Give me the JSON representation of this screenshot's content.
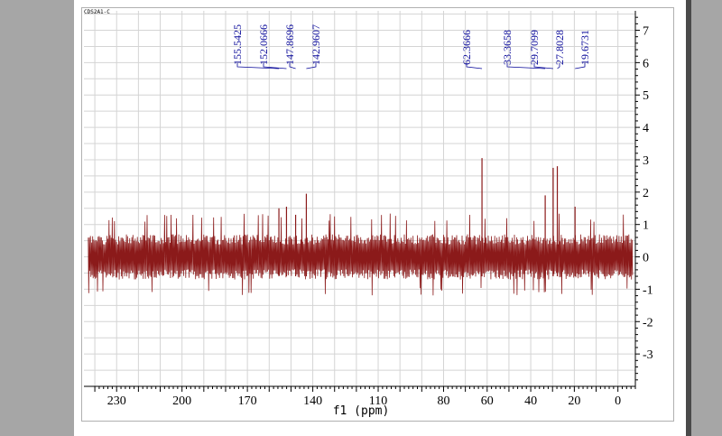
{
  "chart_data": {
    "type": "line",
    "sample_label": "CDS2A1-C",
    "xlabel": "f1 (ppm)",
    "xlim": [
      245,
      -8
    ],
    "ylim": [
      -4,
      7.6
    ],
    "x_ticks": [
      230,
      200,
      170,
      140,
      110,
      80,
      60,
      40,
      20,
      0
    ],
    "y_ticks": [
      7,
      6,
      5,
      4,
      3,
      2,
      1,
      0,
      -1,
      -2,
      -3
    ],
    "grid": true,
    "noise_amplitude": 0.7,
    "noise_range": [
      -1.2,
      1.35
    ],
    "peaks": [
      {
        "ppm": 155.5425,
        "height": 1.5
      },
      {
        "ppm": 152.0666,
        "height": 1.55
      },
      {
        "ppm": 147.8696,
        "height": 1.3
      },
      {
        "ppm": 142.9607,
        "height": 1.95
      },
      {
        "ppm": 62.3666,
        "height": 3.05
      },
      {
        "ppm": 33.3658,
        "height": 1.9
      },
      {
        "ppm": 29.7099,
        "height": 2.75
      },
      {
        "ppm": 27.8028,
        "height": 2.8
      },
      {
        "ppm": 19.6731,
        "height": 1.55
      }
    ],
    "peak_labels": [
      "155.5425",
      "152.0666",
      "147.8696",
      "142.9607",
      "62.3666",
      "33.3658",
      "29.7099",
      "27.8028",
      "19.6731"
    ],
    "colors": {
      "spectrum": "#8b1a1a",
      "peak_label": "#0a0a9a",
      "grid": "#d4d4d4",
      "axis": "#000000"
    }
  }
}
